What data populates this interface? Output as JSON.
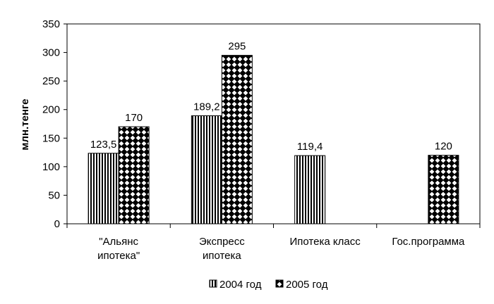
{
  "chart_data": {
    "type": "bar",
    "title": "",
    "ylabel": "млн.тенге",
    "xlabel": "",
    "ylim": [
      0,
      350
    ],
    "yticks": [
      0,
      50,
      100,
      150,
      200,
      250,
      300,
      350
    ],
    "grid": false,
    "legend_position": "bottom",
    "categories": [
      [
        "\"Альянс",
        "ипотека\""
      ],
      [
        "Экспресс",
        "ипотека"
      ],
      [
        "Ипотека класс"
      ],
      [
        "Гос.программа"
      ]
    ],
    "series": [
      {
        "name": "2004 год",
        "pattern": "vertical-stripes",
        "values": [
          123.5,
          189.2,
          119.4,
          null
        ],
        "labels": [
          "123,5",
          "189,2",
          "119,4",
          ""
        ]
      },
      {
        "name": "2005 год",
        "pattern": "diamond-checker",
        "values": [
          170,
          295,
          null,
          120
        ],
        "labels": [
          "170",
          "295",
          "",
          "120"
        ]
      }
    ]
  }
}
